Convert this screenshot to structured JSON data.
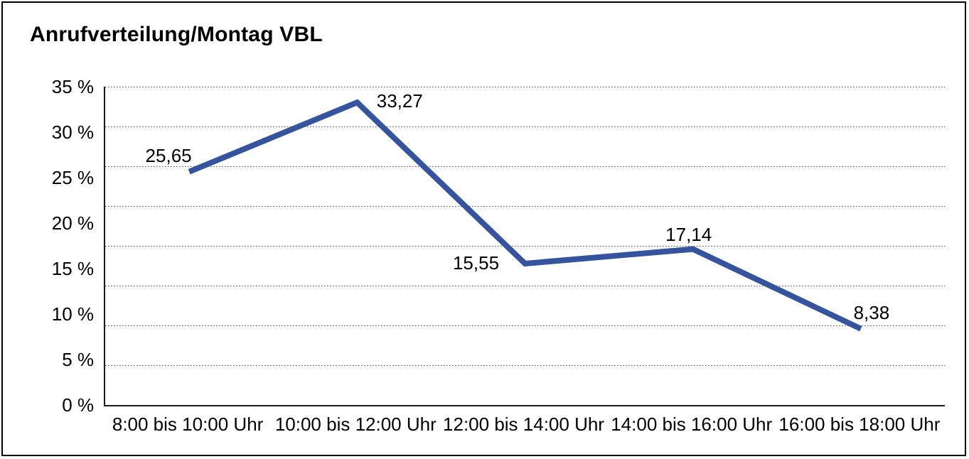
{
  "chart_data": {
    "type": "line",
    "title": "Anrufverteilung/Montag VBL",
    "categories": [
      "8:00 bis 10:00 Uhr",
      "10:00 bis 12:00 Uhr",
      "12:00 bis 14:00 Uhr",
      "14:00 bis 16:00 Uhr",
      "16:00 bis 18:00 Uhr"
    ],
    "values": [
      25.65,
      33.27,
      15.55,
      17.14,
      8.38
    ],
    "point_labels": [
      "25,65",
      "33,27",
      "15,55",
      "17,14",
      "8,38"
    ],
    "y_tick_labels": [
      "35 %",
      "30 %",
      "25 %",
      "20 %",
      "15 %",
      "10 %",
      "5 %",
      "0 %"
    ],
    "ylim": [
      0,
      35
    ],
    "xlabel": "",
    "ylabel": "",
    "legend": "none",
    "grid": {
      "horizontal": "dotted",
      "divisions": 8,
      "color": "#4d4d4d"
    },
    "line_color": "#36549D",
    "text_color": "#000000",
    "decimal_format": "comma"
  }
}
